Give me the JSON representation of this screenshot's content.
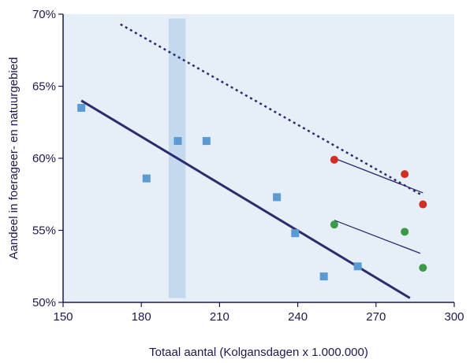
{
  "chart_data": {
    "type": "scatter",
    "xlabel": "Totaal aantal (Kolgansdagen x 1.000.000)",
    "ylabel": "Aandeel in foerageer- en natuurgebied",
    "xlim": [
      150,
      300
    ],
    "ylim": [
      50,
      70
    ],
    "x_ticks": [
      150,
      180,
      210,
      240,
      270,
      300
    ],
    "x_tick_labels": [
      "150",
      "180",
      "210",
      "240",
      "270",
      "300"
    ],
    "y_ticks": [
      50,
      55,
      60,
      65,
      70
    ],
    "y_tick_labels": [
      "50%",
      "55%",
      "60%",
      "65%",
      "70%"
    ],
    "grid": false,
    "legend": "none",
    "background_color": "#e6eef8",
    "band": {
      "x0": 190.5,
      "x1": 197,
      "y0": 50.3,
      "y1": 69.7,
      "color": "#c4d8ee"
    },
    "series": [
      {
        "marker": "square",
        "color": "#5b9bd5",
        "points": [
          [
            157,
            63.5
          ],
          [
            182,
            58.6
          ],
          [
            194,
            61.2
          ],
          [
            205,
            61.2
          ],
          [
            232,
            57.3
          ],
          [
            239,
            54.8
          ],
          [
            250,
            51.8
          ],
          [
            263,
            52.5
          ]
        ]
      },
      {
        "marker": "circle",
        "color": "#d12e26",
        "points": [
          [
            254,
            59.9
          ],
          [
            281,
            58.9
          ],
          [
            288,
            56.8
          ]
        ]
      },
      {
        "marker": "circle",
        "color": "#3a9a48",
        "points": [
          [
            254,
            55.4
          ],
          [
            281,
            54.9
          ],
          [
            288,
            52.4
          ]
        ]
      }
    ],
    "lines": [
      {
        "style": "solid",
        "color": "#2b2b6e",
        "width": 3,
        "points": [
          [
            157,
            64.0
          ],
          [
            283,
            50.3
          ]
        ]
      },
      {
        "style": "dotted",
        "color": "#2b2b6e",
        "width": 2.5,
        "points": [
          [
            172,
            69.3
          ],
          [
            288,
            57.4
          ]
        ]
      },
      {
        "style": "solid",
        "color": "#2b2b6e",
        "width": 1.3,
        "points": [
          [
            254,
            60.0
          ],
          [
            288,
            57.6
          ]
        ]
      },
      {
        "style": "solid",
        "color": "#2b2b6e",
        "width": 1.3,
        "points": [
          [
            254,
            55.7
          ],
          [
            287,
            53.4
          ]
        ]
      }
    ]
  }
}
